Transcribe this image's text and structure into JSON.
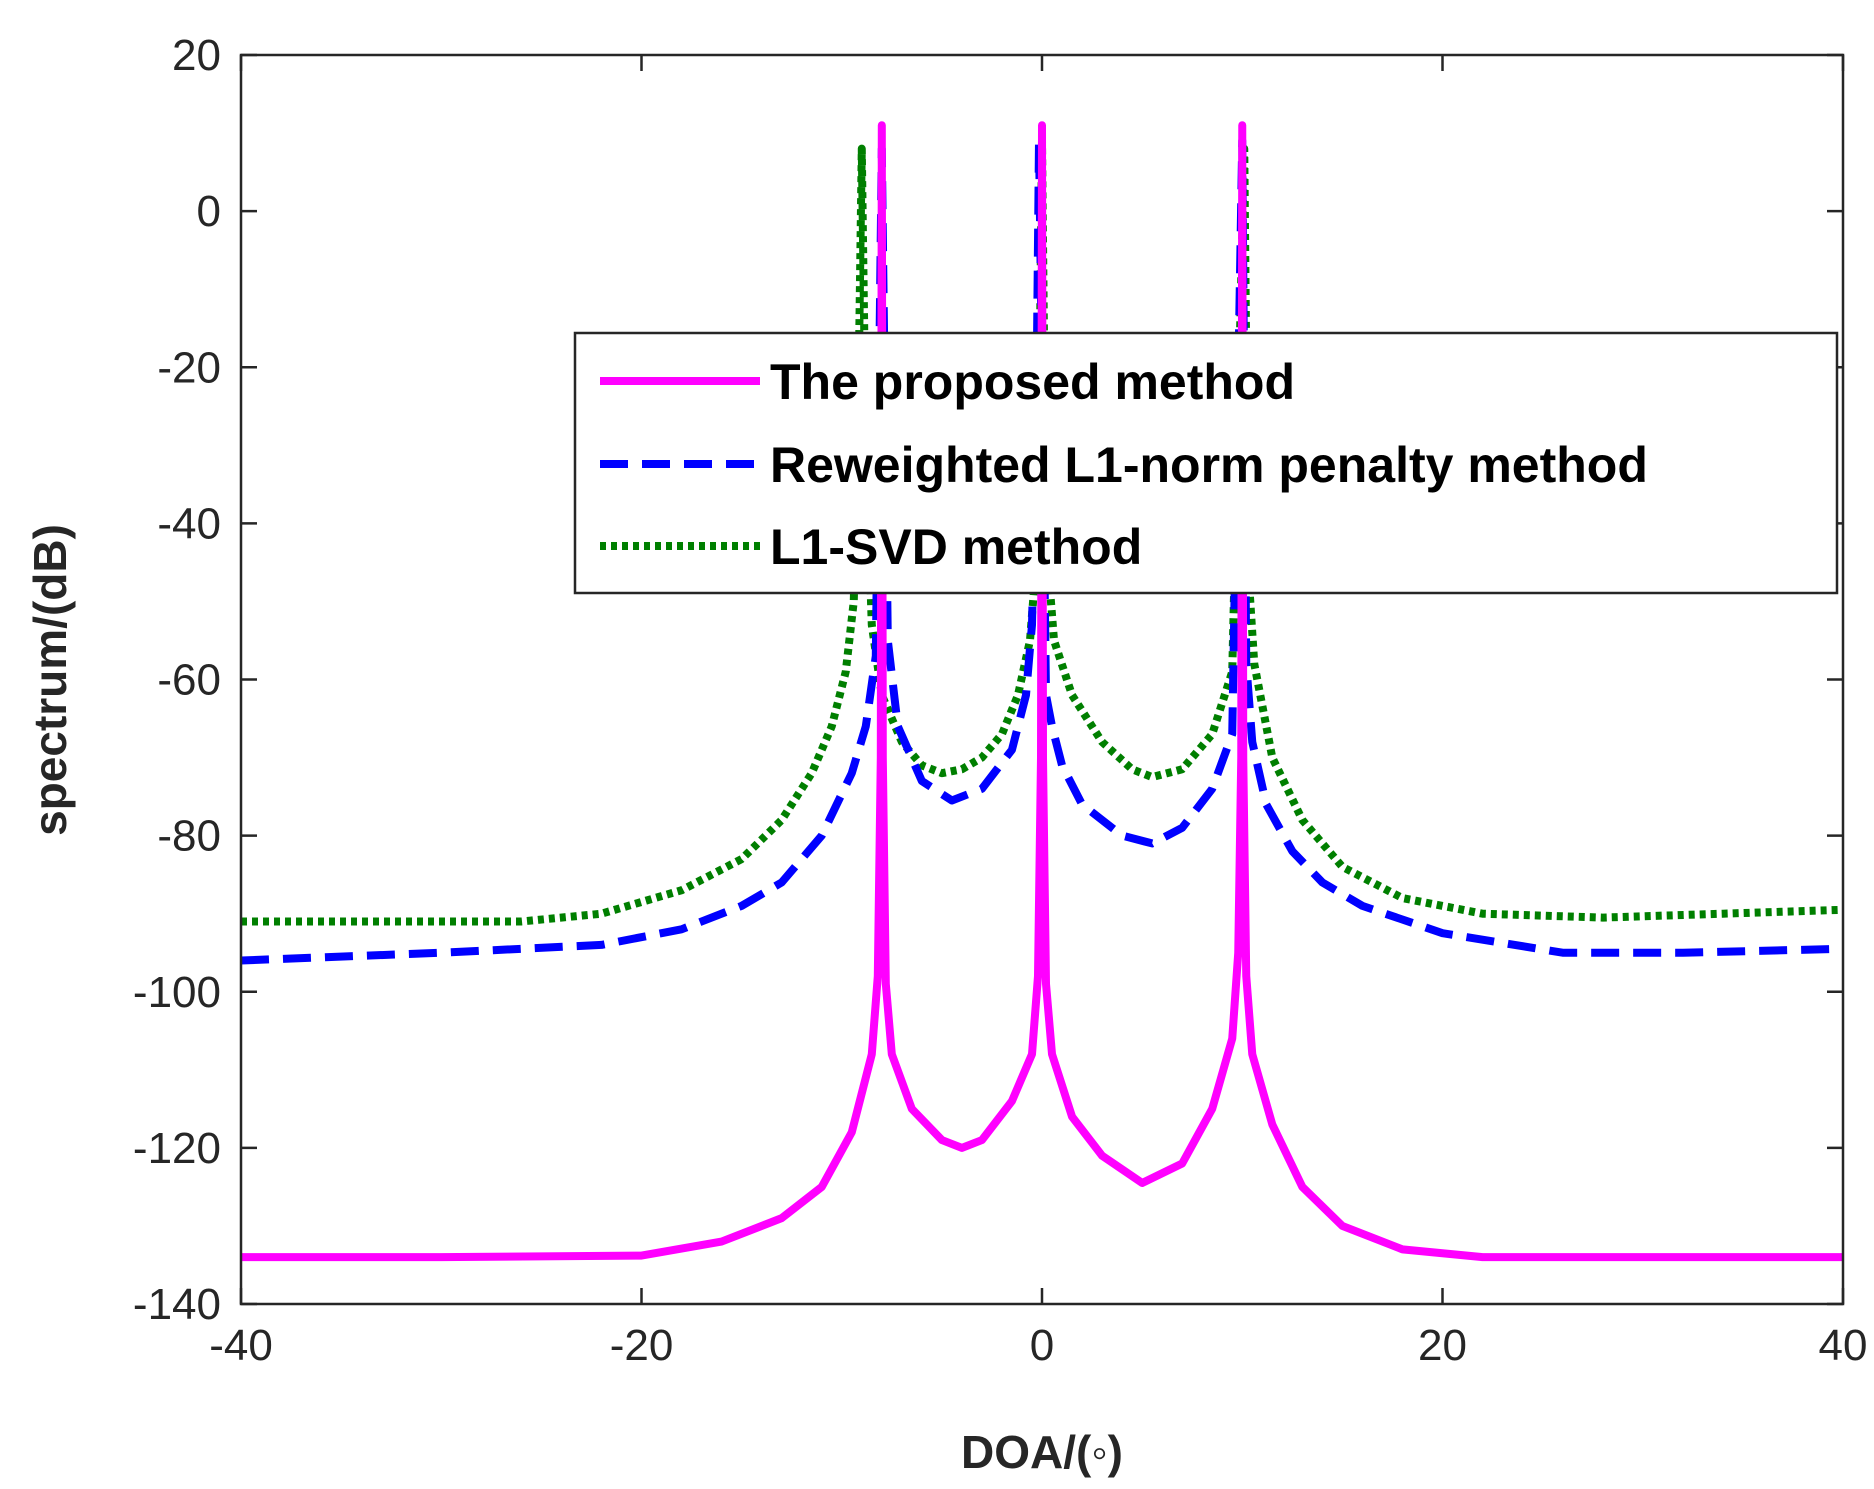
{
  "chart_data": {
    "type": "line",
    "title": "",
    "xlabel": "DOA/(◦)",
    "ylabel": "spectrum/(dB)",
    "xlim": [
      -40,
      40
    ],
    "ylim": [
      -140,
      20
    ],
    "xticks": [
      -40,
      -20,
      0,
      20,
      40
    ],
    "yticks": [
      -140,
      -120,
      -100,
      -80,
      -60,
      -40,
      -20,
      0,
      20
    ],
    "xtick_labels": [
      "-40",
      "-20",
      "0",
      "20",
      "40"
    ],
    "ytick_labels": [
      "-140",
      "-120",
      "-100",
      "-80",
      "-60",
      "-40",
      "-20",
      "0",
      "20"
    ],
    "grid": false,
    "box": true,
    "legend_position": "center-right",
    "series": [
      {
        "name": "The proposed method",
        "color": "#ff00ff",
        "style": "solid",
        "x": [
          -40,
          -30,
          -20,
          -16,
          -13,
          -11,
          -9.5,
          -8.5,
          -8.2,
          -8.05,
          -8,
          -7.95,
          -7.8,
          -7.5,
          -6.5,
          -5,
          -4,
          -3,
          -1.5,
          -0.5,
          -0.2,
          -0.05,
          0,
          0.05,
          0.2,
          0.5,
          1.5,
          3,
          5,
          7,
          8.5,
          9.5,
          9.8,
          9.95,
          10,
          10.05,
          10.2,
          10.5,
          11.5,
          13,
          15,
          18,
          22,
          30,
          40
        ],
        "y": [
          -134,
          -134,
          -133.8,
          -132,
          -129,
          -125,
          -118,
          -108,
          -98,
          -70,
          11,
          -70,
          -99,
          -108,
          -115,
          -119,
          -120,
          -119,
          -114,
          -108,
          -98,
          -70,
          11,
          -70,
          -99,
          -108,
          -116,
          -121,
          -124.5,
          -122,
          -115,
          -106,
          -95,
          -70,
          11,
          -70,
          -98,
          -108,
          -117,
          -125,
          -130,
          -133,
          -134,
          -134,
          -134
        ]
      },
      {
        "name": "Reweighted L1-norm penalty method",
        "color": "#0000ff",
        "style": "dashed",
        "x": [
          -40,
          -30,
          -22,
          -18,
          -15,
          -13,
          -11,
          -9.5,
          -8.8,
          -8.3,
          -8,
          -7.7,
          -7.2,
          -6,
          -4.5,
          -3,
          -1.5,
          -0.8,
          -0.5,
          -0.3,
          -0.15,
          0.2,
          0.5,
          1,
          2,
          4,
          5.5,
          7,
          8.5,
          9.5,
          10,
          10.2,
          10.5,
          11.2,
          12.5,
          14,
          16,
          20,
          26,
          32,
          40
        ],
        "y": [
          -96,
          -95,
          -94,
          -92,
          -89,
          -86,
          -80,
          -72,
          -66,
          -57,
          8,
          -55,
          -66,
          -73,
          -75.5,
          -74,
          -69,
          -62,
          -53,
          -30,
          9,
          -62,
          -66,
          -71,
          -76,
          -80,
          -81,
          -79,
          -74,
          -67,
          9,
          -58,
          -68,
          -76,
          -82,
          -86,
          -89,
          -92.5,
          -95,
          -95,
          -94.5
        ]
      },
      {
        "name": "L1-SVD method",
        "color": "#007f00",
        "style": "dotted",
        "x": [
          -40,
          -32,
          -26,
          -22,
          -18,
          -15,
          -13,
          -11.5,
          -10.5,
          -9.8,
          -9.4,
          -9.2,
          -9,
          -8.8,
          -8.5,
          -8,
          -7,
          -6,
          -5,
          -4,
          -3,
          -2,
          -1.2,
          -0.6,
          -0.2,
          0,
          0.2,
          0.6,
          1.5,
          3,
          4.5,
          5.5,
          7,
          8.5,
          9.5,
          10.1,
          10.3,
          10.6,
          11.5,
          13,
          15,
          18,
          22,
          28,
          34,
          40
        ],
        "y": [
          -91,
          -91,
          -91,
          -90,
          -87,
          -83,
          -78,
          -72,
          -66,
          -59,
          -50,
          -30,
          8,
          -30,
          -53,
          -62,
          -68,
          -71,
          -72,
          -71.5,
          -70,
          -67,
          -62,
          -55,
          -42,
          9,
          -42,
          -55,
          -62,
          -68,
          -71.5,
          -72.5,
          -71.5,
          -67,
          -59,
          8,
          -46,
          -58,
          -70,
          -78,
          -84,
          -88,
          -90,
          -90.5,
          -90,
          -89.5
        ]
      }
    ]
  },
  "legend": {
    "entries": [
      "The proposed method",
      "Reweighted L1-norm penalty method",
      "L1-SVD method"
    ]
  }
}
